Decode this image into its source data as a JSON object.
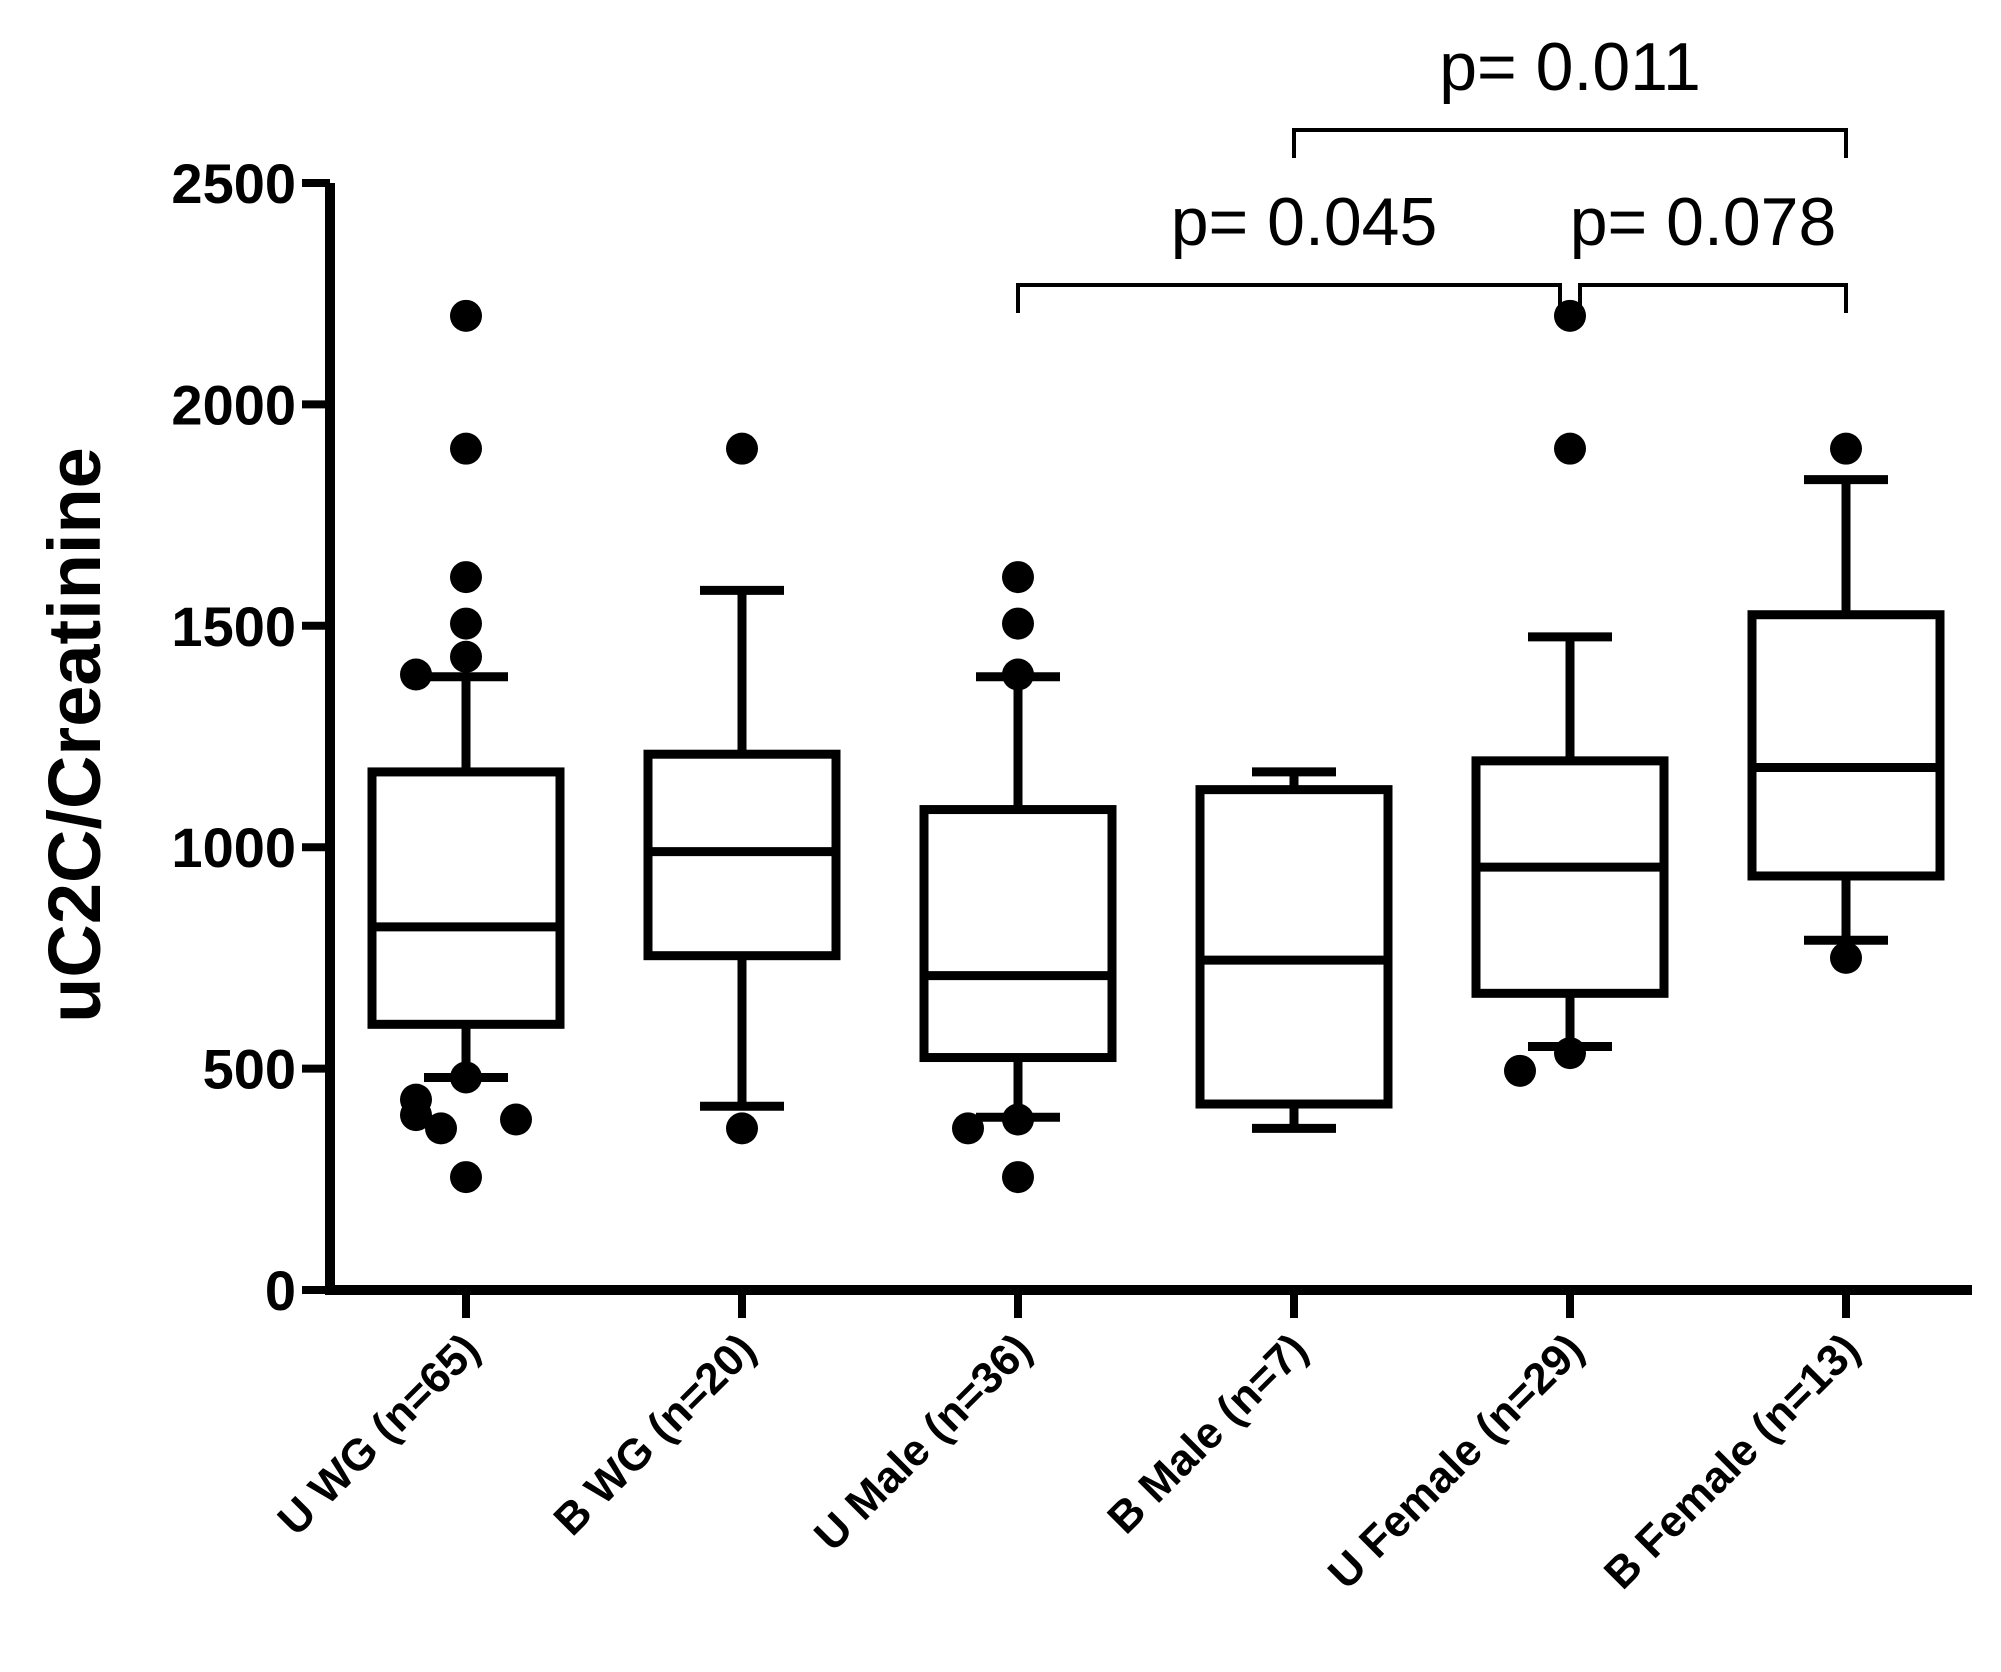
{
  "chart_data": {
    "type": "box",
    "ylabel": "uC2C/Creatinine",
    "ylim": [
      0,
      2500
    ],
    "yticks": [
      "0",
      "500",
      "1000",
      "1500",
      "2000",
      "2500"
    ],
    "categories": [
      "U WG (n=65)",
      "B WG (n=20)",
      "U Male (n=36)",
      "B Male (n=7)",
      "U Female (n=29)",
      "B Female (n=13)"
    ],
    "boxes": [
      {
        "category": "U WG (n=65)",
        "whisker_low": 480,
        "q1": 600,
        "median": 820,
        "q3": 1170,
        "whisker_high": 1385,
        "outliers": [
          2200,
          1900,
          1610,
          1505,
          1430,
          1390,
          480,
          395,
          430,
          385,
          365,
          255
        ]
      },
      {
        "category": "B WG (n=20)",
        "whisker_low": 415,
        "q1": 755,
        "median": 990,
        "q3": 1210,
        "whisker_high": 1580,
        "outliers": [
          1900,
          365
        ]
      },
      {
        "category": "U Male (n=36)",
        "whisker_low": 390,
        "q1": 525,
        "median": 710,
        "q3": 1085,
        "whisker_high": 1385,
        "outliers": [
          1610,
          1505,
          1390,
          385,
          365,
          255
        ]
      },
      {
        "category": "B Male (n=7)",
        "whisker_low": 365,
        "q1": 420,
        "median": 745,
        "q3": 1130,
        "whisker_high": 1170,
        "outliers": []
      },
      {
        "category": "U Female (n=29)",
        "whisker_low": 550,
        "q1": 670,
        "median": 955,
        "q3": 1195,
        "whisker_high": 1475,
        "outliers": [
          2200,
          1900,
          535,
          495
        ]
      },
      {
        "category": "B Female (n=13)",
        "whisker_low": 790,
        "q1": 935,
        "median": 1180,
        "q3": 1525,
        "whisker_high": 1830,
        "outliers": [
          1900,
          750
        ]
      }
    ],
    "annotations": [
      {
        "text": "p= 0.045",
        "from": "U Male (n=36)",
        "to": "U Female (n=29)",
        "level": 1
      },
      {
        "text": "p= 0.078",
        "from": "U Female (n=29)",
        "to": "B Female (n=13)",
        "level": 1
      },
      {
        "text": "p= 0.011",
        "from": "B Male (n=7)",
        "to": "B Female (n=13)",
        "level": 2
      }
    ]
  }
}
